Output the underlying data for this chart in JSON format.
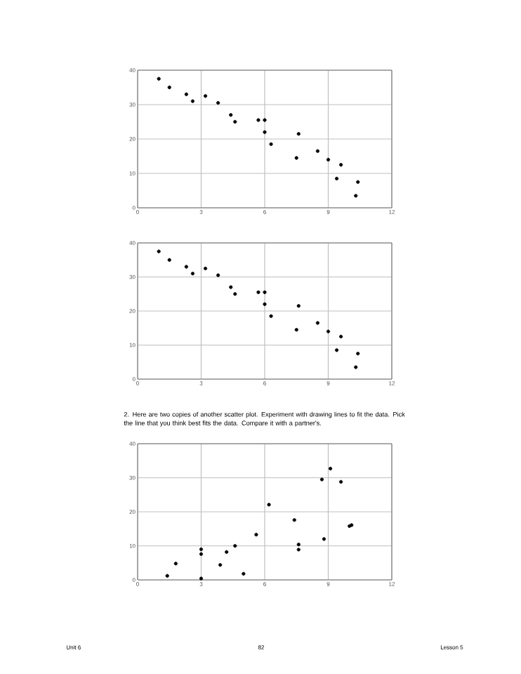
{
  "chart_data": [
    {
      "type": "scatter",
      "xlim": [
        0,
        12
      ],
      "ylim": [
        0,
        40
      ],
      "xticks": [
        0,
        3,
        6,
        9,
        12
      ],
      "yticks": [
        0,
        10,
        20,
        30,
        40
      ],
      "grid": true,
      "marker": "circle",
      "series": [
        {
          "color": "#000000",
          "x": [
            1,
            1.5,
            2.3,
            2.6,
            3.2,
            3.8,
            4.4,
            4.6,
            5.7,
            6,
            6,
            6.3,
            7.6,
            7.5,
            8.5,
            9,
            9.6,
            9.4,
            10.4,
            10.3
          ],
          "values": [
            37.5,
            35,
            33,
            31,
            32.5,
            30.5,
            27,
            25,
            25.5,
            25.5,
            22,
            18.5,
            21.5,
            14.5,
            16.5,
            14,
            12.5,
            8.5,
            7.5,
            3.5
          ]
        }
      ]
    },
    {
      "type": "scatter",
      "xlim": [
        0,
        12
      ],
      "ylim": [
        0,
        40
      ],
      "xticks": [
        0,
        3,
        6,
        9,
        12
      ],
      "yticks": [
        0,
        10,
        20,
        30,
        40
      ],
      "grid": true,
      "marker": "circle",
      "series": [
        {
          "color": "#000000",
          "x": [
            1,
            1.5,
            2.3,
            2.6,
            3.2,
            3.8,
            4.4,
            4.6,
            5.7,
            6,
            6,
            6.3,
            7.6,
            7.5,
            8.5,
            9,
            9.6,
            9.4,
            10.4,
            10.3
          ],
          "values": [
            37.5,
            35,
            33,
            31,
            32.5,
            30.5,
            27,
            25,
            25.5,
            25.5,
            22,
            18.5,
            21.5,
            14.5,
            16.5,
            14,
            12.5,
            8.5,
            7.5,
            3.5
          ]
        }
      ]
    },
    {
      "type": "scatter",
      "title": "2. Here are two copies of another scatter plot. Experiment with drawing lines to fit the data. Pick the line that you think best fits the data. Compare it with a partner's.",
      "xlim": [
        0,
        12
      ],
      "ylim": [
        0,
        40
      ],
      "xticks": [
        0,
        3,
        6,
        9,
        12
      ],
      "yticks": [
        0,
        10,
        20,
        30,
        40
      ],
      "grid": true,
      "marker": "circle",
      "annotations": [
        "Unit 6",
        "82",
        "Lesson 5"
      ],
      "series": [
        {
          "color": "#000000",
          "x": [
            1.4,
            1.8,
            3,
            3,
            3,
            3.9,
            4.2,
            4.6,
            5,
            5.6,
            6.2,
            7.4,
            7.6,
            7.6,
            8.8,
            8.7,
            9.1,
            9.6,
            10,
            10.1
          ],
          "values": [
            1.2,
            4.8,
            9,
            7.6,
            0.4,
            4.4,
            8.2,
            10,
            1.8,
            13.3,
            22.1,
            17.6,
            10.4,
            8.9,
            12,
            29.5,
            32.7,
            28.8,
            15.8,
            16.1
          ]
        }
      ]
    }
  ]
}
